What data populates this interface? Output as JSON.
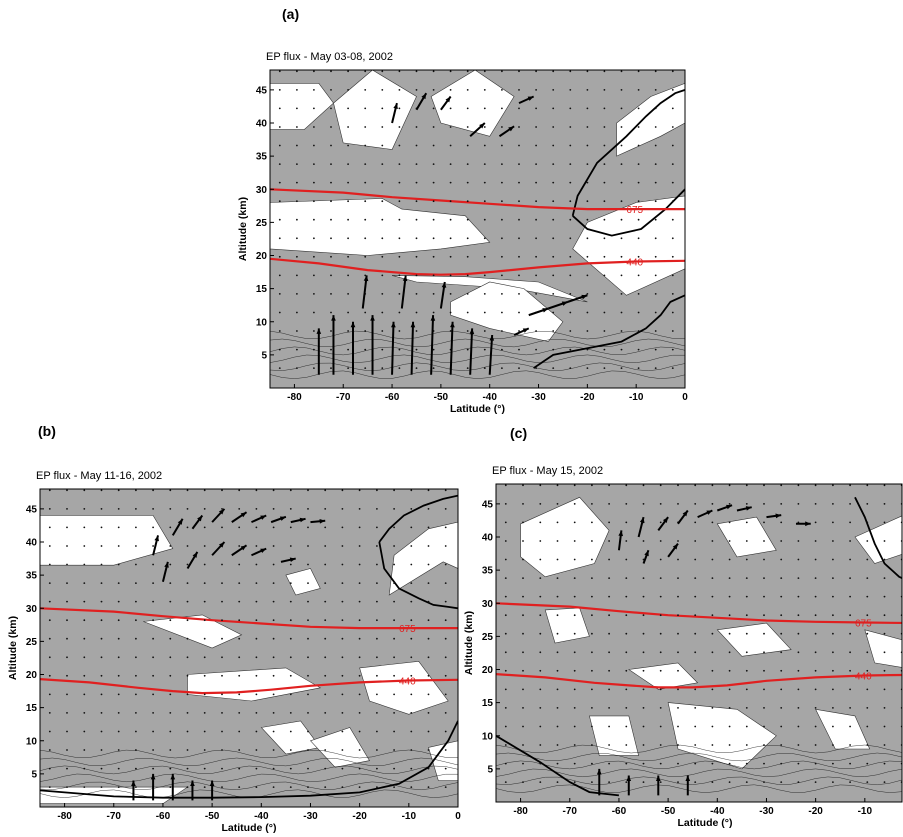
{
  "figure": {
    "panels": [
      {
        "letter": "(a)",
        "title": "EP flux - May 03-08, 2002"
      },
      {
        "letter": "(b)",
        "title": "EP flux - May 11-16, 2002"
      },
      {
        "letter": "(c)",
        "title": "EP flux - May 15, 2002"
      }
    ]
  },
  "colors": {
    "shading": "#a6a6a6",
    "isentrope": "#e02020",
    "contour": "#111111"
  },
  "chart_data": [
    {
      "type": "contour",
      "title": "EP flux - May 03-08, 2002",
      "xlabel": "Latitude (°)",
      "ylabel": "Altitude (km)",
      "xlim": [
        -85,
        0
      ],
      "ylim": [
        0,
        48
      ],
      "xticks": [
        -80,
        -70,
        -60,
        -50,
        -40,
        -30,
        -20,
        -10,
        0
      ],
      "yticks": [
        5,
        10,
        15,
        20,
        25,
        30,
        35,
        40,
        45
      ],
      "isentropes": [
        {
          "name": "675",
          "x": [
            -85,
            -70,
            -60,
            -50,
            -40,
            -30,
            -20,
            -10,
            0
          ],
          "y": [
            30.0,
            29.5,
            28.8,
            28.3,
            27.8,
            27.3,
            27.0,
            27.0,
            27.0
          ]
        },
        {
          "name": "440",
          "x": [
            -85,
            -75,
            -65,
            -55,
            -50,
            -45,
            -40,
            -30,
            -20,
            -10,
            0
          ],
          "y": [
            19.5,
            18.8,
            17.8,
            17.2,
            17.1,
            17.2,
            17.5,
            18.2,
            18.8,
            19.1,
            19.2
          ]
        }
      ],
      "white_regions": [
        {
          "x": [
            -85,
            -75,
            -72,
            -78,
            -85
          ],
          "y": [
            46,
            46,
            43,
            39,
            39
          ]
        },
        {
          "x": [
            -72,
            -64,
            -55,
            -60,
            -70
          ],
          "y": [
            43,
            48,
            44,
            36,
            37
          ]
        },
        {
          "x": [
            -52,
            -43,
            -35,
            -40,
            -50
          ],
          "y": [
            44,
            48,
            44,
            38,
            40
          ]
        },
        {
          "x": [
            -85,
            -62,
            -58,
            -45,
            -40,
            -50,
            -65,
            -85
          ],
          "y": [
            28,
            28.6,
            27,
            26,
            22,
            21,
            20,
            21
          ]
        },
        {
          "x": [
            -60,
            -45,
            -30,
            -20,
            -35,
            -55
          ],
          "y": [
            17,
            16.8,
            16,
            13,
            15,
            16
          ]
        },
        {
          "x": [
            -48,
            -40,
            -33,
            -25,
            -28,
            -40,
            -48
          ],
          "y": [
            13,
            16,
            15,
            10,
            7,
            9,
            11
          ]
        },
        {
          "x": [
            -23,
            -12,
            0,
            0,
            -10,
            -20
          ],
          "y": [
            21,
            14,
            18,
            29,
            28,
            25
          ]
        },
        {
          "x": [
            -14,
            -5,
            0,
            0,
            -7,
            -14
          ],
          "y": [
            35,
            38,
            40,
            46,
            44,
            40
          ]
        }
      ],
      "zero_contours": [
        {
          "x": [
            -23,
            -22,
            -18,
            -12,
            -8,
            -5,
            -2,
            0
          ],
          "y": [
            26,
            29,
            34,
            38,
            41,
            43,
            44.5,
            45
          ]
        },
        {
          "x": [
            -23,
            -20,
            -15,
            -9,
            -4,
            0
          ],
          "y": [
            26,
            24,
            23,
            24,
            27,
            30
          ]
        },
        {
          "x": [
            -31,
            -27,
            -20,
            -13,
            -8,
            -5,
            -3,
            0
          ],
          "y": [
            3,
            5,
            6,
            7,
            9,
            11,
            13,
            14
          ]
        }
      ],
      "arrows": [
        {
          "x": -75,
          "y": 2,
          "dx": 0,
          "dy": 7
        },
        {
          "x": -72,
          "y": 2,
          "dx": 0,
          "dy": 9
        },
        {
          "x": -68,
          "y": 2,
          "dx": 0,
          "dy": 8
        },
        {
          "x": -64,
          "y": 2,
          "dx": 0,
          "dy": 9
        },
        {
          "x": -60,
          "y": 2,
          "dx": 0.3,
          "dy": 8
        },
        {
          "x": -56,
          "y": 2,
          "dx": 0.3,
          "dy": 8
        },
        {
          "x": -52,
          "y": 2,
          "dx": 0.4,
          "dy": 9
        },
        {
          "x": -48,
          "y": 2,
          "dx": 0.4,
          "dy": 8
        },
        {
          "x": -44,
          "y": 2,
          "dx": 0.4,
          "dy": 7
        },
        {
          "x": -40,
          "y": 2,
          "dx": 0.5,
          "dy": 6
        },
        {
          "x": -66,
          "y": 12,
          "dx": 0.8,
          "dy": 5
        },
        {
          "x": -58,
          "y": 12,
          "dx": 0.8,
          "dy": 5
        },
        {
          "x": -50,
          "y": 12,
          "dx": 0.8,
          "dy": 4
        },
        {
          "x": -32,
          "y": 11,
          "dx": 4,
          "dy": 1
        },
        {
          "x": -28,
          "y": 12,
          "dx": 4,
          "dy": 1
        },
        {
          "x": -24,
          "y": 13,
          "dx": 4,
          "dy": 1
        },
        {
          "x": -35,
          "y": 8,
          "dx": 3,
          "dy": 1
        },
        {
          "x": -60,
          "y": 40,
          "dx": 1,
          "dy": 3
        },
        {
          "x": -55,
          "y": 42,
          "dx": 2,
          "dy": 2.5
        },
        {
          "x": -50,
          "y": 42,
          "dx": 2,
          "dy": 2
        },
        {
          "x": -44,
          "y": 38,
          "dx": 3,
          "dy": 2
        },
        {
          "x": -38,
          "y": 38,
          "dx": 3,
          "dy": 1.5
        },
        {
          "x": -34,
          "y": 43,
          "dx": 3,
          "dy": 1
        }
      ]
    },
    {
      "type": "contour",
      "title": "EP flux - May 11-16, 2002",
      "xlabel": "Latitude (°)",
      "ylabel": "Altitude (km)",
      "xlim": [
        -85,
        0
      ],
      "ylim": [
        0,
        48
      ],
      "xticks": [
        -80,
        -70,
        -60,
        -50,
        -40,
        -30,
        -20,
        -10,
        0
      ],
      "yticks": [
        5,
        10,
        15,
        20,
        25,
        30,
        35,
        40,
        45
      ],
      "isentropes": [
        {
          "name": "675",
          "x": [
            -85,
            -70,
            -60,
            -50,
            -40,
            -30,
            -20,
            -10,
            0
          ],
          "y": [
            30.0,
            29.5,
            28.8,
            28.2,
            27.7,
            27.2,
            27.0,
            27.0,
            27.0
          ]
        },
        {
          "name": "440",
          "x": [
            -85,
            -75,
            -65,
            -58,
            -52,
            -45,
            -38,
            -30,
            -20,
            -10,
            0
          ],
          "y": [
            19.3,
            18.8,
            18.0,
            17.5,
            17.2,
            17.3,
            17.7,
            18.3,
            18.8,
            19.1,
            19.2
          ]
        }
      ],
      "white_regions": [
        {
          "x": [
            -85,
            -62,
            -58,
            -70,
            -85
          ],
          "y": [
            44,
            44,
            39,
            36.5,
            36.5
          ]
        },
        {
          "x": [
            -85,
            -60,
            -55,
            -85
          ],
          "y": [
            0.5,
            0.5,
            3,
            3
          ]
        },
        {
          "x": [
            -35,
            -30,
            -28,
            -33
          ],
          "y": [
            35,
            36,
            33,
            32
          ]
        },
        {
          "x": [
            -64,
            -52,
            -44,
            -50
          ],
          "y": [
            28,
            29,
            26,
            24
          ]
        },
        {
          "x": [
            -55,
            -35,
            -28,
            -42,
            -55
          ],
          "y": [
            20,
            21,
            18,
            16,
            17
          ]
        },
        {
          "x": [
            -40,
            -32,
            -28,
            -35
          ],
          "y": [
            12,
            13,
            9,
            8
          ]
        },
        {
          "x": [
            -30,
            -22,
            -18,
            -25
          ],
          "y": [
            10,
            12,
            7,
            6
          ]
        },
        {
          "x": [
            -20,
            -8,
            -2,
            -10,
            -18
          ],
          "y": [
            21,
            22,
            16,
            14,
            16
          ]
        },
        {
          "x": [
            -14,
            -3,
            0,
            0,
            -6,
            -13
          ],
          "y": [
            32,
            37,
            36,
            43,
            42,
            38
          ]
        },
        {
          "x": [
            -6,
            0,
            0,
            -4
          ],
          "y": [
            9,
            10,
            4,
            4
          ]
        }
      ],
      "zero_contours": [
        {
          "x": [
            -16,
            -15,
            -12,
            -8,
            -5,
            -2,
            0
          ],
          "y": [
            40,
            36,
            33,
            31.5,
            30.5,
            30.2,
            30
          ]
        },
        {
          "x": [
            -16,
            -14,
            -11,
            -7,
            -3,
            0
          ],
          "y": [
            40,
            42,
            44,
            45.5,
            46.5,
            47
          ]
        },
        {
          "x": [
            -85,
            -70,
            -60,
            -50,
            -40,
            -30,
            -20,
            -12,
            -6,
            -2,
            0
          ],
          "y": [
            2.5,
            1.6,
            1.4,
            1.4,
            1.5,
            1.7,
            2.2,
            3.5,
            6,
            10,
            13
          ]
        }
      ],
      "arrows": [
        {
          "x": -62,
          "y": 38,
          "dx": 1,
          "dy": 3
        },
        {
          "x": -58,
          "y": 41,
          "dx": 2,
          "dy": 2.5
        },
        {
          "x": -54,
          "y": 42,
          "dx": 2,
          "dy": 2
        },
        {
          "x": -50,
          "y": 43,
          "dx": 2.5,
          "dy": 2
        },
        {
          "x": -46,
          "y": 43,
          "dx": 3,
          "dy": 1.5
        },
        {
          "x": -42,
          "y": 43,
          "dx": 3,
          "dy": 1
        },
        {
          "x": -38,
          "y": 43,
          "dx": 3,
          "dy": 0.8
        },
        {
          "x": -34,
          "y": 43,
          "dx": 3,
          "dy": 0.5
        },
        {
          "x": -30,
          "y": 43,
          "dx": 3,
          "dy": 0.2
        },
        {
          "x": -60,
          "y": 34,
          "dx": 1,
          "dy": 3
        },
        {
          "x": -55,
          "y": 36,
          "dx": 2,
          "dy": 2.5
        },
        {
          "x": -50,
          "y": 38,
          "dx": 2.5,
          "dy": 2
        },
        {
          "x": -46,
          "y": 38,
          "dx": 3,
          "dy": 1.5
        },
        {
          "x": -42,
          "y": 38,
          "dx": 3,
          "dy": 1
        },
        {
          "x": -36,
          "y": 37,
          "dx": 3,
          "dy": 0.5
        },
        {
          "x": -66,
          "y": 1,
          "dx": 0,
          "dy": 3
        },
        {
          "x": -62,
          "y": 1,
          "dx": 0,
          "dy": 4
        },
        {
          "x": -58,
          "y": 1,
          "dx": 0,
          "dy": 4
        },
        {
          "x": -54,
          "y": 1,
          "dx": 0,
          "dy": 3
        },
        {
          "x": -50,
          "y": 1,
          "dx": 0,
          "dy": 3
        }
      ]
    },
    {
      "type": "contour",
      "title": "EP flux - May 15, 2002",
      "xlabel": "Latitude (°)",
      "ylabel": "Altitude (km)",
      "xlim": [
        -85,
        0
      ],
      "ylim": [
        0,
        48
      ],
      "xticks": [
        -80,
        -70,
        -60,
        -50,
        -40,
        -30,
        -20,
        -10
      ],
      "yticks": [
        5,
        10,
        15,
        20,
        25,
        30,
        35,
        40,
        45
      ],
      "isentropes": [
        {
          "name": "675",
          "x": [
            -85,
            -70,
            -60,
            -50,
            -40,
            -30,
            -20,
            -10,
            0
          ],
          "y": [
            30.0,
            29.5,
            28.8,
            28.2,
            27.8,
            27.4,
            27.2,
            27.1,
            27.0
          ]
        },
        {
          "name": "440",
          "x": [
            -85,
            -75,
            -65,
            -58,
            -52,
            -45,
            -38,
            -30,
            -20,
            -10,
            0
          ],
          "y": [
            19.3,
            18.8,
            18.0,
            17.6,
            17.3,
            17.3,
            17.6,
            18.3,
            18.8,
            19.1,
            19.2
          ]
        }
      ],
      "white_regions": [
        {
          "x": [
            -80,
            -68,
            -62,
            -65,
            -75,
            -80
          ],
          "y": [
            42,
            46,
            41,
            36,
            34,
            37
          ]
        },
        {
          "x": [
            -40,
            -32,
            -28,
            -36
          ],
          "y": [
            42,
            43,
            38,
            37
          ]
        },
        {
          "x": [
            -75,
            -68,
            -66,
            -73
          ],
          "y": [
            29,
            29.3,
            25,
            24
          ]
        },
        {
          "x": [
            -10,
            0,
            0,
            -8
          ],
          "y": [
            26,
            24,
            20,
            21
          ]
        },
        {
          "x": [
            -40,
            -30,
            -25,
            -35
          ],
          "y": [
            26,
            27,
            23,
            22
          ]
        },
        {
          "x": [
            -50,
            -36,
            -28,
            -35,
            -48
          ],
          "y": [
            15,
            14,
            10,
            5,
            8
          ]
        },
        {
          "x": [
            -58,
            -48,
            -44,
            -52
          ],
          "y": [
            20,
            21,
            18,
            17
          ]
        },
        {
          "x": [
            -12,
            0,
            0,
            -8
          ],
          "y": [
            40,
            44,
            38,
            36
          ]
        },
        {
          "x": [
            -20,
            -12,
            -9,
            -16
          ],
          "y": [
            14,
            13,
            8,
            8
          ]
        },
        {
          "x": [
            -66,
            -58,
            -56,
            -64
          ],
          "y": [
            13,
            13,
            7,
            7
          ]
        }
      ],
      "zero_contours": [
        {
          "x": [
            -12,
            -10,
            -8,
            -6,
            -3,
            0
          ],
          "y": [
            46,
            43,
            39,
            36,
            34,
            33
          ]
        },
        {
          "x": [
            -85,
            -76,
            -70,
            -66,
            -60
          ],
          "y": [
            10,
            6,
            3,
            1.5,
            1
          ]
        }
      ],
      "arrows": [
        {
          "x": -60,
          "y": 38,
          "dx": 0.5,
          "dy": 3
        },
        {
          "x": -56,
          "y": 40,
          "dx": 1,
          "dy": 3
        },
        {
          "x": -52,
          "y": 41,
          "dx": 2,
          "dy": 2
        },
        {
          "x": -48,
          "y": 42,
          "dx": 2,
          "dy": 2
        },
        {
          "x": -44,
          "y": 43,
          "dx": 3,
          "dy": 1
        },
        {
          "x": -40,
          "y": 44,
          "dx": 3,
          "dy": 0.8
        },
        {
          "x": -36,
          "y": 44,
          "dx": 3,
          "dy": 0.5
        },
        {
          "x": -30,
          "y": 43,
          "dx": 3,
          "dy": 0.3
        },
        {
          "x": -24,
          "y": 42,
          "dx": 3,
          "dy": 0
        },
        {
          "x": -55,
          "y": 36,
          "dx": 1,
          "dy": 2
        },
        {
          "x": -50,
          "y": 37,
          "dx": 2,
          "dy": 2
        },
        {
          "x": -64,
          "y": 1,
          "dx": 0,
          "dy": 4
        },
        {
          "x": -58,
          "y": 1,
          "dx": 0,
          "dy": 3
        },
        {
          "x": -52,
          "y": 1,
          "dx": 0,
          "dy": 3
        },
        {
          "x": -46,
          "y": 1,
          "dx": 0,
          "dy": 3
        }
      ]
    }
  ]
}
